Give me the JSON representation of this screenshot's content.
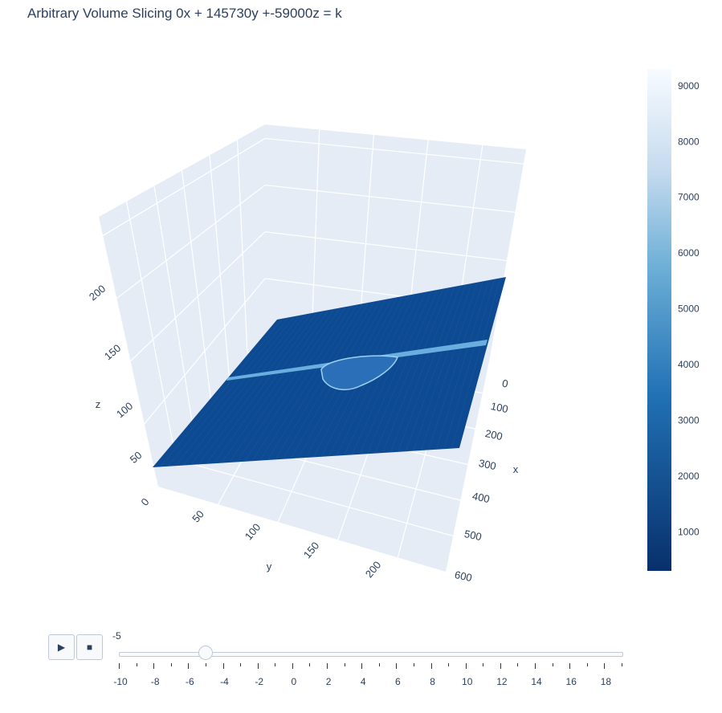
{
  "title": "Arbitrary Volume Slicing 0x + 145730y +-59000z = k",
  "chart_data": {
    "type": "surface",
    "colorscale": "Blues (reversed)",
    "colorbar": {
      "range": [
        300,
        9300
      ],
      "ticks": [
        "9000",
        "8000",
        "7000",
        "6000",
        "5000",
        "4000",
        "3000",
        "2000",
        "1000"
      ]
    },
    "axes": {
      "x": {
        "label": "x",
        "ticks": [
          "0",
          "100",
          "200",
          "300",
          "400",
          "500",
          "600"
        ],
        "range": [
          0,
          600
        ]
      },
      "y": {
        "label": "y",
        "ticks": [
          "0",
          "50",
          "100",
          "150",
          "200"
        ],
        "range": [
          0,
          240
        ]
      },
      "z": {
        "label": "z",
        "ticks": [
          "50",
          "100",
          "150",
          "200"
        ],
        "range": [
          0,
          240
        ]
      }
    },
    "plane": {
      "equation": "0x + 145730y +-59000z = k",
      "base_value": 1500,
      "highlight_band_value": 5500
    }
  },
  "slider": {
    "current_value": "-5",
    "value": -5,
    "min": -10,
    "max": 19,
    "labels": [
      "-10",
      "-8",
      "-6",
      "-4",
      "-2",
      "0",
      "2",
      "4",
      "6",
      "8",
      "10",
      "12",
      "14",
      "16",
      "18"
    ]
  },
  "controls": {
    "play_icon": "▶",
    "stop_icon": "■"
  },
  "colors": {
    "pane": "#e5ecf6",
    "grid": "#ffffff",
    "text": "#2a3f5f",
    "plane_dark": "#0d4a92",
    "plane_band": "#6aaee0"
  }
}
